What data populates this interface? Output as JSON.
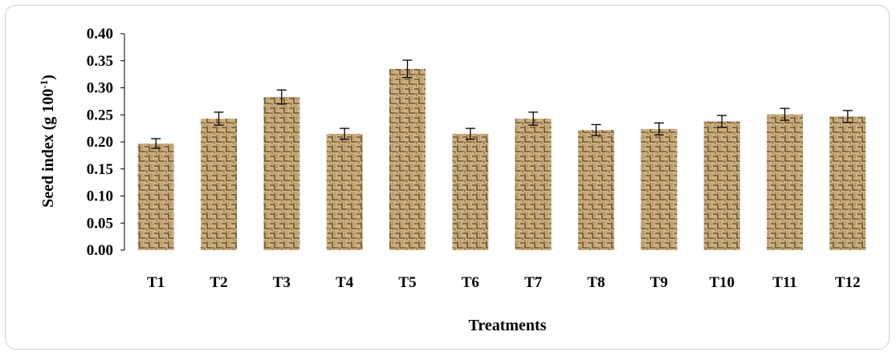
{
  "chart_data": {
    "type": "bar",
    "title": "",
    "xlabel": "Treatments",
    "ylabel": {
      "main": "Seed index (g 100",
      "sup": "-1",
      "close": ")"
    },
    "categories": [
      "T1",
      "T2",
      "T3",
      "T4",
      "T5",
      "T6",
      "T7",
      "T8",
      "T9",
      "T10",
      "T11",
      "T12"
    ],
    "values": [
      0.197,
      0.243,
      0.283,
      0.215,
      0.335,
      0.215,
      0.243,
      0.222,
      0.224,
      0.238,
      0.251,
      0.247
    ],
    "errors": [
      0.009,
      0.012,
      0.013,
      0.01,
      0.016,
      0.01,
      0.012,
      0.01,
      0.011,
      0.011,
      0.011,
      0.011
    ],
    "ylim": [
      0,
      0.4
    ],
    "yticks": [
      "0.00",
      "0.05",
      "0.10",
      "0.15",
      "0.20",
      "0.25",
      "0.30",
      "0.35",
      "0.40"
    ],
    "grid": false,
    "legend": "none",
    "bar_fill": "burlap texture (tan #c9a77a with dark weave #6b5434)"
  }
}
